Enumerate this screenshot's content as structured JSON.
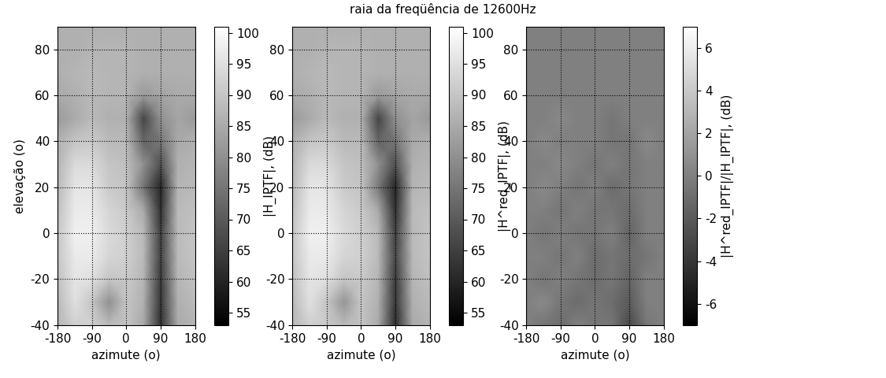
{
  "title": "raia da freqüência de 12600Hz",
  "chart_data": [
    {
      "type": "heatmap",
      "xlabel": "azimute (o)",
      "ylabel": "elevação (o)",
      "colorbar_label": "|H_IPTF|, (dB)",
      "x": [
        -180,
        -135,
        -90,
        -45,
        0,
        45,
        90,
        135,
        180
      ],
      "y": [
        -40,
        -30,
        -20,
        -10,
        0,
        10,
        20,
        30,
        40,
        50,
        60,
        70,
        80,
        90
      ],
      "cells": [
        [
          87,
          92,
          92,
          88,
          90,
          85,
          62,
          85,
          87
        ],
        [
          88,
          95,
          90,
          80,
          90,
          86,
          63,
          86,
          88
        ],
        [
          89,
          96,
          95,
          90,
          91,
          87,
          64,
          87,
          89
        ],
        [
          90,
          97,
          97,
          93,
          92,
          88,
          65,
          88,
          90
        ],
        [
          90,
          98,
          98,
          94,
          92,
          88,
          65,
          88,
          90
        ],
        [
          89,
          97,
          97,
          93,
          91,
          85,
          62,
          88,
          89
        ],
        [
          88,
          96,
          96,
          91,
          90,
          75,
          60,
          87,
          88
        ],
        [
          87,
          94,
          94,
          90,
          89,
          80,
          68,
          86,
          87
        ],
        [
          86,
          90,
          91,
          88,
          88,
          72,
          75,
          85,
          86
        ],
        [
          82,
          85,
          88,
          86,
          86,
          66,
          80,
          84,
          82
        ],
        [
          85,
          86,
          88,
          87,
          87,
          82,
          84,
          85,
          85
        ],
        [
          86,
          87,
          88,
          87,
          87,
          86,
          86,
          86,
          86
        ],
        [
          86,
          86,
          87,
          87,
          87,
          86,
          86,
          86,
          86
        ],
        [
          86,
          86,
          86,
          86,
          86,
          86,
          86,
          86,
          86
        ]
      ],
      "xlim": [
        -180,
        180
      ],
      "ylim": [
        -40,
        90
      ],
      "xticks": [
        -180,
        -90,
        0,
        90,
        180
      ],
      "yticks": [
        -40,
        -20,
        0,
        20,
        40,
        60,
        80
      ],
      "colorbar_range": [
        53,
        101
      ],
      "colorbar_ticks": [
        55,
        60,
        65,
        70,
        75,
        80,
        85,
        90,
        95,
        100
      ],
      "grid": true
    },
    {
      "type": "heatmap",
      "xlabel": "azimute (o)",
      "colorbar_label": "|H^red_IPTF|, (dB)",
      "x": [
        -180,
        -135,
        -90,
        -45,
        0,
        45,
        90,
        135,
        180
      ],
      "y": [
        -40,
        -30,
        -20,
        -10,
        0,
        10,
        20,
        30,
        40,
        50,
        60,
        70,
        80,
        90
      ],
      "cells": [
        [
          87,
          92,
          91,
          88,
          90,
          85,
          61,
          85,
          87
        ],
        [
          88,
          95,
          90,
          81,
          90,
          86,
          63,
          86,
          88
        ],
        [
          89,
          96,
          95,
          90,
          91,
          87,
          64,
          87,
          89
        ],
        [
          90,
          97,
          97,
          93,
          92,
          88,
          66,
          88,
          90
        ],
        [
          90,
          98,
          98,
          94,
          92,
          88,
          65,
          88,
          90
        ],
        [
          89,
          97,
          97,
          93,
          91,
          85,
          62,
          88,
          89
        ],
        [
          88,
          96,
          96,
          91,
          90,
          76,
          60,
          87,
          88
        ],
        [
          87,
          94,
          94,
          90,
          89,
          80,
          68,
          86,
          87
        ],
        [
          86,
          90,
          91,
          88,
          88,
          72,
          75,
          85,
          86
        ],
        [
          82,
          85,
          88,
          86,
          86,
          66,
          80,
          84,
          82
        ],
        [
          85,
          86,
          88,
          87,
          87,
          82,
          84,
          85,
          85
        ],
        [
          86,
          87,
          88,
          87,
          87,
          86,
          86,
          86,
          86
        ],
        [
          86,
          86,
          87,
          87,
          87,
          86,
          86,
          86,
          86
        ],
        [
          86,
          86,
          86,
          86,
          86,
          86,
          86,
          86,
          86
        ]
      ],
      "xlim": [
        -180,
        180
      ],
      "ylim": [
        -40,
        90
      ],
      "xticks": [
        -180,
        -90,
        0,
        90,
        180
      ],
      "yticks": [
        -40,
        -20,
        0,
        20,
        40,
        60,
        80
      ],
      "colorbar_range": [
        53,
        101
      ],
      "colorbar_ticks": [
        55,
        60,
        65,
        70,
        75,
        80,
        85,
        90,
        95,
        100
      ],
      "grid": true
    },
    {
      "type": "heatmap",
      "xlabel": "azimute (o)",
      "colorbar_label": "|H^red_IPTF|/|H_IPTF|, (dB)",
      "x": [
        -180,
        -135,
        -90,
        -45,
        0,
        45,
        90,
        135,
        180
      ],
      "y": [
        -40,
        -30,
        -20,
        -10,
        0,
        10,
        20,
        30,
        40,
        50,
        60,
        70,
        80,
        90
      ],
      "cells": [
        [
          0,
          -0.5,
          -1,
          0,
          -0.5,
          -0.5,
          -3,
          -0.5,
          0
        ],
        [
          0,
          0.5,
          -0.5,
          -1,
          -0.5,
          -1,
          -2,
          0,
          0
        ],
        [
          0,
          -0.5,
          0,
          -0.5,
          -1,
          -0.5,
          -1.5,
          0,
          0
        ],
        [
          0,
          0,
          -0.5,
          0,
          -1,
          -0.5,
          -1,
          -0.5,
          0
        ],
        [
          0,
          -0.5,
          0,
          -0.5,
          -0.5,
          0,
          -1.5,
          0,
          0
        ],
        [
          0,
          0,
          -0.5,
          0,
          -0.5,
          -0.5,
          -1,
          0,
          0
        ],
        [
          0,
          0.5,
          0,
          -0.5,
          0,
          -1,
          -0.5,
          0,
          0
        ],
        [
          0,
          0,
          0.5,
          0,
          -0.5,
          0,
          -0.5,
          0,
          0
        ],
        [
          0,
          0.5,
          0,
          0,
          0,
          -0.5,
          -0.5,
          0.5,
          0
        ],
        [
          0,
          0,
          0.5,
          0,
          0,
          -0.5,
          0,
          0,
          0
        ],
        [
          0,
          0,
          0,
          0,
          0,
          0,
          0,
          0,
          0
        ],
        [
          0,
          0,
          0,
          0,
          0,
          0,
          0,
          0,
          0
        ],
        [
          0,
          0,
          0,
          0,
          0,
          0,
          0,
          0,
          0
        ],
        [
          0,
          0,
          0,
          0,
          0,
          0,
          0,
          0,
          0
        ]
      ],
      "xlim": [
        -180,
        180
      ],
      "ylim": [
        -40,
        90
      ],
      "xticks": [
        -180,
        -90,
        0,
        90,
        180
      ],
      "yticks": [
        -40,
        -20,
        0,
        20,
        40,
        60,
        80
      ],
      "colorbar_range": [
        -7,
        7
      ],
      "colorbar_ticks": [
        -6,
        -4,
        -2,
        0,
        2,
        4,
        6
      ],
      "grid": true
    }
  ]
}
